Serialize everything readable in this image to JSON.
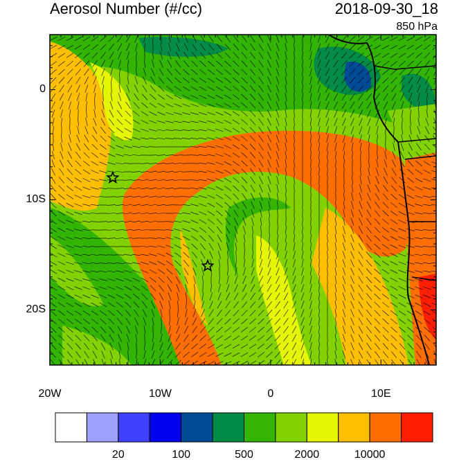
{
  "title": "Aerosol Number (#/cc)",
  "datetime": "2018-09-30_18",
  "level": "850 hPa",
  "axes": {
    "x_ticks": [
      {
        "value": -20,
        "label": "20W"
      },
      {
        "value": -10,
        "label": "10W"
      },
      {
        "value": 0,
        "label": "0"
      },
      {
        "value": 10,
        "label": "10E"
      }
    ],
    "y_ticks": [
      {
        "value": 0,
        "label": "0"
      },
      {
        "value": -10,
        "label": "10S"
      },
      {
        "value": -20,
        "label": "20S"
      }
    ],
    "lon_range": [
      -20,
      15
    ],
    "lat_range": [
      -25,
      5
    ]
  },
  "colorbar": {
    "colors": [
      "#ffffff",
      "#a0a0ff",
      "#4040ff",
      "#0000ee",
      "#004a96",
      "#008c46",
      "#32b400",
      "#82d200",
      "#e6f500",
      "#ffbe00",
      "#ff6e00",
      "#ff1e00"
    ],
    "labels": [
      {
        "boundary": 2,
        "text": "20"
      },
      {
        "boundary": 4,
        "text": "100"
      },
      {
        "boundary": 6,
        "text": "500"
      },
      {
        "boundary": 8,
        "text": "2000"
      },
      {
        "boundary": 10,
        "text": "10000"
      }
    ]
  },
  "markers": [
    {
      "lon": -14.3,
      "lat": -8.0,
      "type": "star"
    },
    {
      "lon": -5.7,
      "lat": -16.0,
      "type": "star"
    }
  ]
}
